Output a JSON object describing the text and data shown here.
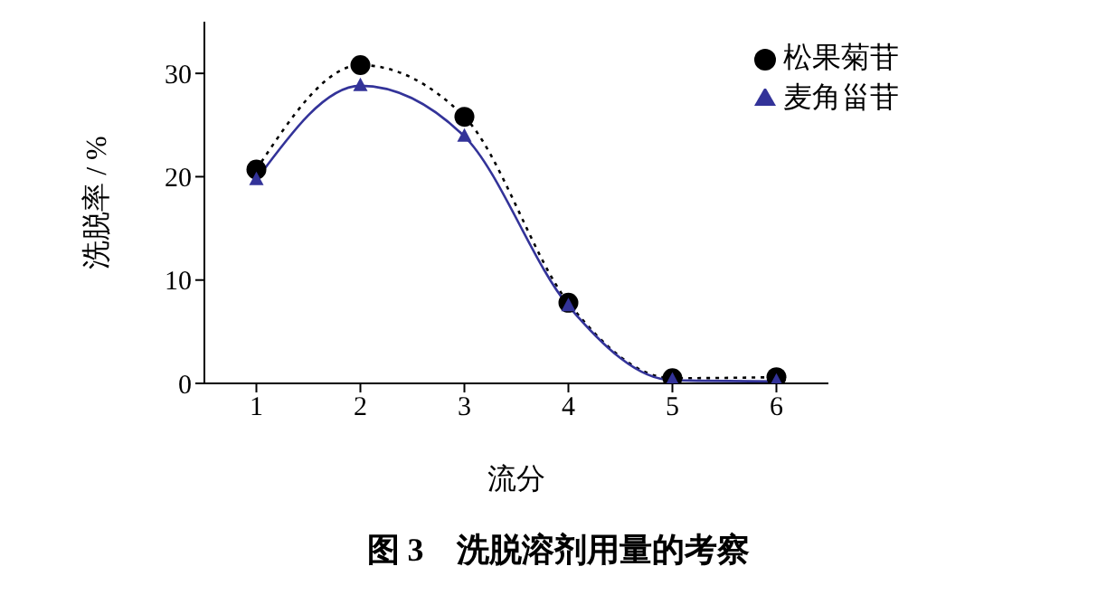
{
  "chart_data": {
    "type": "line",
    "title": "图 3　洗脱溶剂用量的考察",
    "xlabel": "流分",
    "ylabel": "洗脱率 / %",
    "x": [
      1,
      2,
      3,
      4,
      5,
      6
    ],
    "series": [
      {
        "name": "松果菊苷",
        "color": "#000000",
        "marker": "circle",
        "line_style": "dotted",
        "values": [
          20.7,
          30.8,
          25.8,
          7.8,
          0.5,
          0.6
        ]
      },
      {
        "name": "麦角甾苷",
        "color": "#333399",
        "marker": "triangle",
        "line_style": "solid",
        "values": [
          19.7,
          28.8,
          23.9,
          7.5,
          0.3,
          0.2
        ]
      }
    ],
    "xlim": [
      0.5,
      6.5
    ],
    "xticks": [
      1,
      2,
      3,
      4,
      5,
      6
    ],
    "ylim": [
      0,
      35
    ],
    "yticks": [
      0,
      10,
      20,
      30
    ],
    "grid": false,
    "legend": "top right"
  }
}
